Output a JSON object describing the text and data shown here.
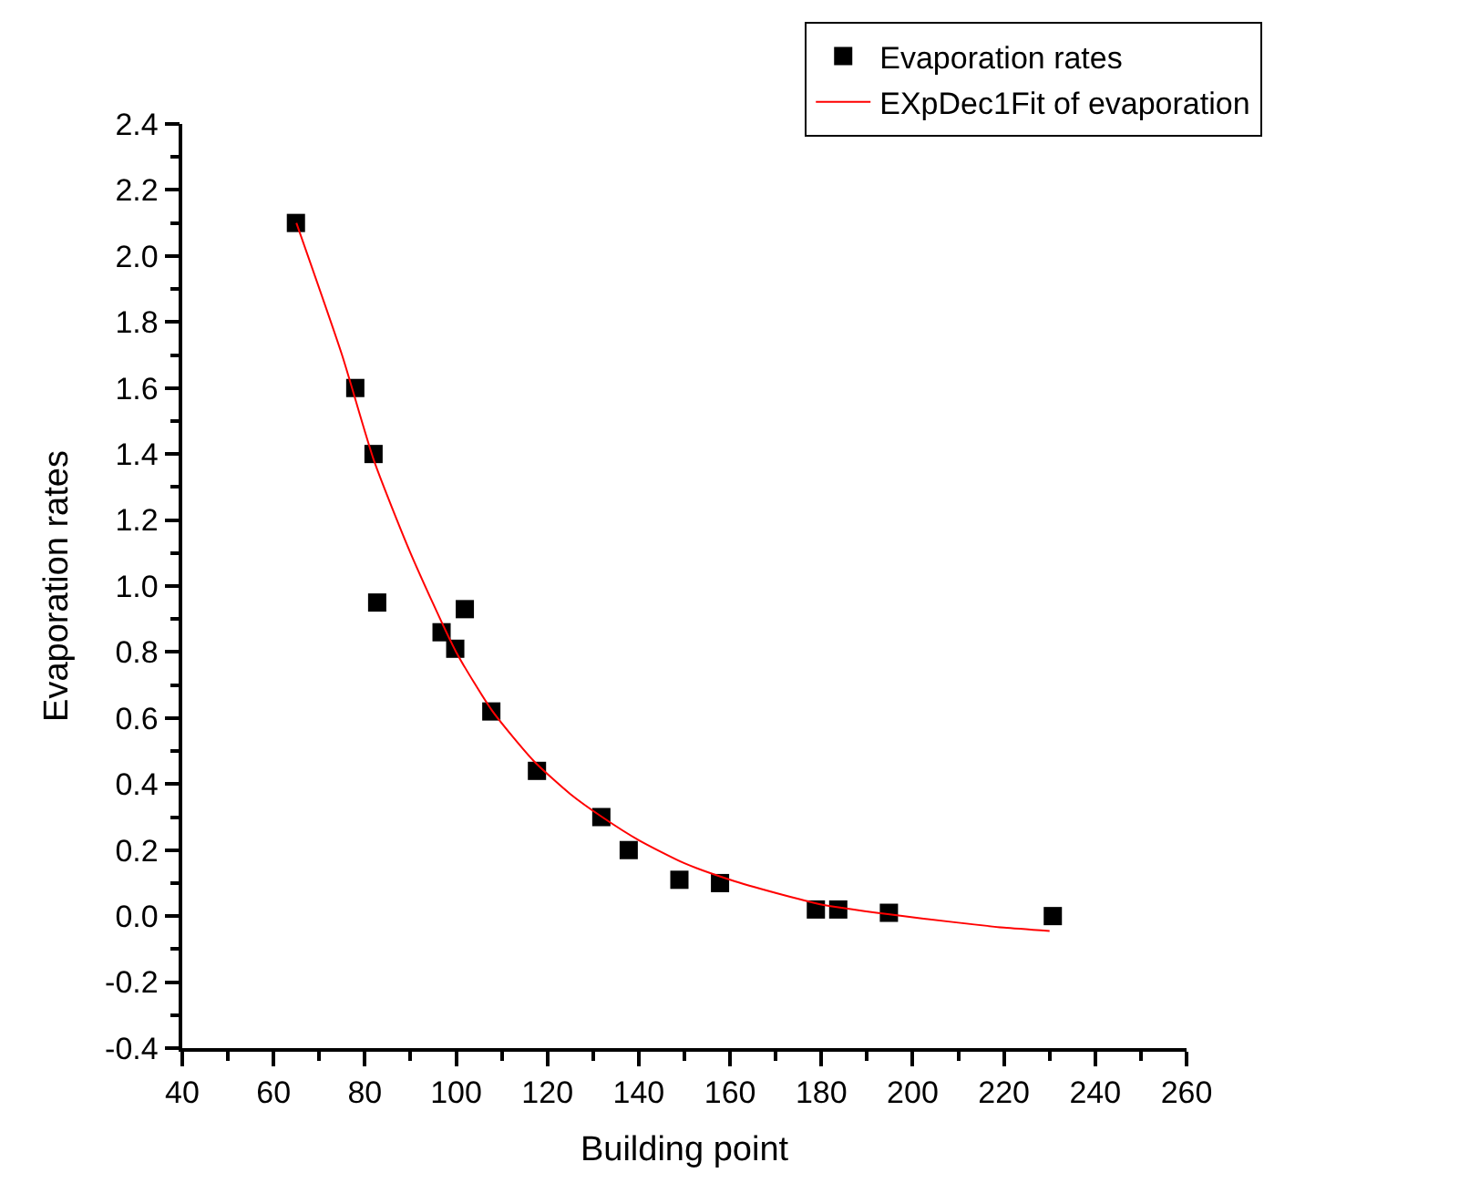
{
  "chart_data": {
    "type": "scatter",
    "xlabel": "Building point",
    "ylabel": "Evaporation rates",
    "xlim": [
      40,
      260
    ],
    "xticks": [
      40,
      60,
      80,
      100,
      120,
      140,
      160,
      180,
      200,
      220,
      240,
      260
    ],
    "ylim": [
      -0.4,
      2.4
    ],
    "yticks": [
      {
        "value": -0.4,
        "label": "-0.4"
      },
      {
        "value": -0.2,
        "label": "-0.2"
      },
      {
        "value": 0,
        "label": "0.0"
      },
      {
        "value": 0.2,
        "label": "0.2"
      },
      {
        "value": 0.4,
        "label": "0.4"
      },
      {
        "value": 0.6,
        "label": "0.6"
      },
      {
        "value": 0.8,
        "label": "0.8"
      },
      {
        "value": 1.0,
        "label": "1.0"
      },
      {
        "value": 1.2,
        "label": "1.2"
      },
      {
        "value": 1.4,
        "label": "1.4"
      },
      {
        "value": 1.6,
        "label": "1.6"
      },
      {
        "value": 1.8,
        "label": "1.8"
      },
      {
        "value": 2.0,
        "label": "2.0"
      },
      {
        "value": 2.2,
        "label": "2.2"
      },
      {
        "value": 2.4,
        "label": "2.4"
      }
    ],
    "legend": "top right",
    "series": [
      {
        "name": "Evaporation rates",
        "marker": "square",
        "color": "#000000",
        "x": [
          64.9,
          77.9,
          81.9,
          82.7,
          96.8,
          99.8,
          101.9,
          107.7,
          117.7,
          131.8,
          137.8,
          148.9,
          157.8,
          178.8,
          183.7,
          194.8,
          230.7
        ],
        "values": [
          2.1,
          1.6,
          1.4,
          0.95,
          0.86,
          0.81,
          0.93,
          0.62,
          0.44,
          0.3,
          0.2,
          0.11,
          0.1,
          0.02,
          0.02,
          0.01,
          0.0
        ]
      },
      {
        "name": "EXpDec1Fit of evaporation",
        "type": "line",
        "marker": "none",
        "line_style": "solid",
        "color": "#ff0000",
        "x": [
          65,
          75,
          82,
          90,
          100,
          108,
          117,
          125,
          132,
          140,
          150,
          160,
          170,
          180,
          195,
          210,
          220,
          230
        ],
        "values": [
          2.1,
          1.7,
          1.38,
          1.1,
          0.8,
          0.62,
          0.47,
          0.37,
          0.3,
          0.23,
          0.16,
          0.11,
          0.07,
          0.035,
          0.005,
          -0.02,
          -0.035,
          -0.045
        ]
      }
    ]
  }
}
